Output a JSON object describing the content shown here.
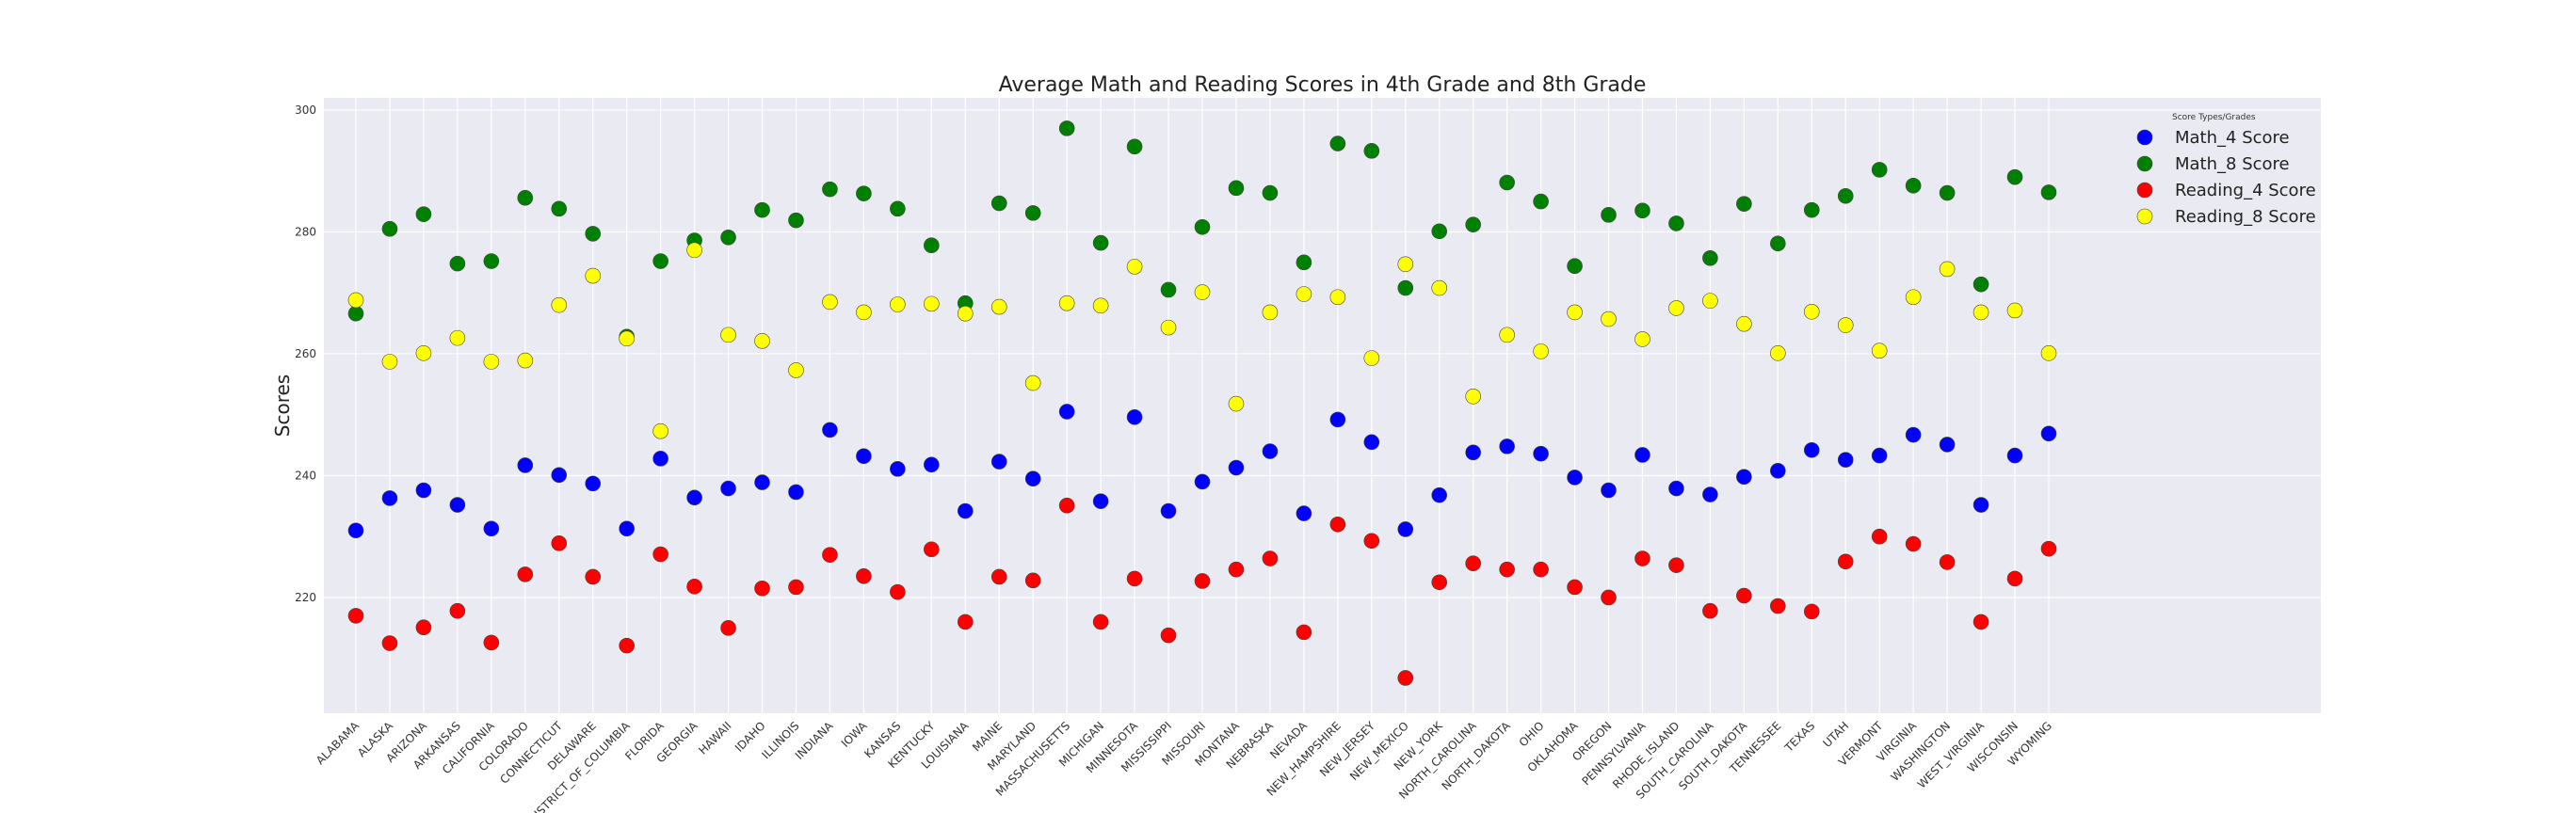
{
  "chart_data": {
    "type": "scatter",
    "title": "Average Math and Reading Scores in 4th Grade and 8th Grade",
    "xlabel": "",
    "ylabel": "Scores",
    "ylim": [
      201,
      302
    ],
    "yticks": [
      220,
      240,
      260,
      280,
      300
    ],
    "grid": true,
    "legend": {
      "title": "Score Types/Grades",
      "position": "top-right"
    },
    "categories": [
      "ALABAMA",
      "ALASKA",
      "ARIZONA",
      "ARKANSAS",
      "CALIFORNIA",
      "COLORADO",
      "CONNECTICUT",
      "DELAWARE",
      "DISTRICT_OF_COLUMBIA",
      "FLORIDA",
      "GEORGIA",
      "HAWAII",
      "IDAHO",
      "ILLINOIS",
      "INDIANA",
      "IOWA",
      "KANSAS",
      "KENTUCKY",
      "LOUISIANA",
      "MAINE",
      "MARYLAND",
      "MASSACHUSETTS",
      "MICHIGAN",
      "MINNESOTA",
      "MISSISSIPPI",
      "MISSOURI",
      "MONTANA",
      "NEBRASKA",
      "NEVADA",
      "NEW_HAMPSHIRE",
      "NEW_JERSEY",
      "NEW_MEXICO",
      "NEW_YORK",
      "NORTH_CAROLINA",
      "NORTH_DAKOTA",
      "OHIO",
      "OKLAHOMA",
      "OREGON",
      "PENNSYLVANIA",
      "RHODE_ISLAND",
      "SOUTH_CAROLINA",
      "SOUTH_DAKOTA",
      "TENNESSEE",
      "TEXAS",
      "UTAH",
      "VERMONT",
      "VIRGINIA",
      "WASHINGTON",
      "WEST_VIRGINIA",
      "WISCONSIN",
      "WYOMING"
    ],
    "series": [
      {
        "name": "Math_4 Score",
        "color": "#0000ff",
        "values": [
          231.0,
          236.3,
          237.6,
          235.2,
          231.3,
          241.7,
          240.1,
          238.7,
          231.3,
          242.8,
          236.4,
          237.9,
          238.9,
          237.3,
          247.5,
          243.2,
          241.1,
          241.8,
          234.2,
          242.3,
          239.5,
          250.5,
          235.8,
          249.6,
          234.2,
          239.0,
          241.3,
          244.0,
          233.8,
          249.2,
          245.5,
          231.2,
          236.8,
          243.8,
          244.8,
          243.6,
          239.7,
          237.6,
          243.4,
          237.9,
          236.9,
          239.8,
          240.8,
          244.2,
          242.6,
          243.3,
          246.7,
          245.1,
          235.2,
          243.3,
          246.9
        ]
      },
      {
        "name": "Math_8 Score",
        "color": "#008000",
        "values": [
          266.6,
          280.5,
          282.9,
          274.8,
          275.2,
          285.6,
          283.8,
          279.7,
          262.8,
          275.2,
          278.6,
          279.1,
          283.6,
          281.9,
          287.0,
          286.3,
          283.8,
          277.8,
          268.3,
          284.7,
          283.1,
          297.0,
          278.2,
          294.0,
          270.5,
          280.8,
          287.2,
          286.4,
          275.0,
          294.5,
          293.3,
          270.8,
          280.1,
          281.2,
          288.1,
          285.0,
          274.4,
          282.8,
          283.5,
          281.4,
          275.7,
          284.6,
          278.1,
          283.6,
          285.9,
          290.2,
          287.6,
          286.4,
          271.4,
          289.0,
          286.5
        ]
      },
      {
        "name": "Reading_4 Score",
        "color": "#ff0000",
        "values": [
          217.0,
          212.5,
          215.1,
          217.8,
          212.6,
          223.8,
          228.9,
          223.4,
          212.1,
          227.1,
          221.8,
          215.0,
          221.5,
          221.7,
          227.0,
          223.5,
          220.9,
          227.9,
          216.0,
          223.4,
          222.8,
          235.1,
          216.0,
          223.1,
          213.8,
          222.7,
          224.6,
          226.4,
          214.3,
          232.0,
          229.3,
          206.8,
          222.5,
          225.6,
          224.6,
          224.6,
          221.7,
          220.0,
          226.4,
          225.3,
          217.8,
          220.3,
          218.6,
          217.7,
          225.9,
          230.0,
          228.8,
          225.8,
          216.0,
          223.1,
          228.0
        ]
      },
      {
        "name": "Reading_8 Score",
        "color": "#ffff00",
        "values": [
          268.8,
          258.7,
          260.1,
          262.6,
          258.7,
          258.9,
          268.0,
          272.8,
          262.5,
          247.3,
          277.0,
          263.1,
          262.1,
          257.3,
          268.5,
          266.8,
          268.1,
          268.2,
          266.6,
          267.7,
          255.2,
          268.3,
          267.9,
          274.3,
          264.3,
          270.1,
          251.8,
          266.8,
          269.8,
          269.3,
          259.3,
          274.7,
          270.8,
          253.0,
          263.1,
          260.4,
          266.8,
          265.7,
          262.4,
          267.5,
          268.7,
          264.9,
          260.1,
          266.9,
          264.7,
          260.5,
          269.3,
          273.9,
          266.8,
          267.1,
          260.1
        ]
      }
    ]
  }
}
